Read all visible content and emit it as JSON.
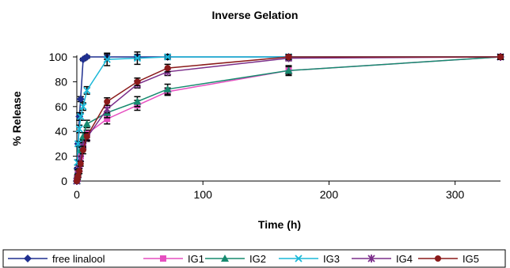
{
  "chart_data": {
    "type": "line",
    "title": "Inverse Gelation",
    "xlabel": "Time (h)",
    "ylabel": "% Release",
    "xlim": [
      0,
      336
    ],
    "ylim": [
      0,
      100
    ],
    "xticks": [
      0,
      100,
      200,
      300
    ],
    "yticks": [
      0,
      20,
      40,
      60,
      80,
      100
    ],
    "grid": false,
    "legend": "bottom",
    "series": [
      {
        "name": "free linalool",
        "color": "#1f2f8f",
        "marker": "diamond",
        "x": [
          0,
          0.5,
          1,
          2,
          3,
          5,
          8,
          24,
          48,
          72,
          168,
          336
        ],
        "y": [
          0,
          10,
          30,
          52,
          66,
          98,
          100,
          100,
          100,
          100,
          100,
          100
        ],
        "err": [
          0,
          1,
          2,
          3,
          2,
          1,
          1,
          2,
          2,
          1,
          1,
          1
        ]
      },
      {
        "name": "IG1",
        "color": "#e64fc0",
        "marker": "square",
        "x": [
          0,
          0.5,
          1,
          2,
          3,
          5,
          8,
          24,
          48,
          72,
          168,
          336
        ],
        "y": [
          0,
          3,
          6,
          12,
          20,
          30,
          38,
          50,
          61,
          72,
          89,
          100
        ],
        "err": [
          0,
          1,
          1,
          2,
          2,
          3,
          3,
          4,
          4,
          3,
          3,
          2
        ]
      },
      {
        "name": "IG2",
        "color": "#168a6f",
        "marker": "triangle",
        "x": [
          0,
          0.5,
          1,
          2,
          3,
          5,
          8,
          24,
          48,
          72,
          168,
          336
        ],
        "y": [
          0,
          4,
          8,
          15,
          25,
          36,
          46,
          55,
          64,
          74,
          89,
          100
        ],
        "err": [
          0,
          1,
          1,
          2,
          2,
          3,
          3,
          4,
          4,
          4,
          4,
          2
        ]
      },
      {
        "name": "IG3",
        "color": "#1ab8d8",
        "marker": "x",
        "x": [
          0,
          0.5,
          1,
          2,
          3,
          5,
          8,
          24,
          48,
          72,
          168,
          336
        ],
        "y": [
          0,
          15,
          30,
          42,
          52,
          60,
          73,
          98,
          99,
          100,
          100,
          100
        ],
        "err": [
          0,
          2,
          2,
          3,
          3,
          3,
          3,
          5,
          5,
          2,
          1,
          1
        ]
      },
      {
        "name": "IG4",
        "color": "#7b2e8a",
        "marker": "star",
        "x": [
          0,
          0.5,
          1,
          2,
          3,
          5,
          8,
          24,
          48,
          72,
          168,
          336
        ],
        "y": [
          0,
          2,
          5,
          10,
          18,
          28,
          35,
          58,
          78,
          88,
          99,
          100
        ],
        "err": [
          0,
          1,
          1,
          2,
          2,
          3,
          3,
          3,
          3,
          3,
          2,
          2
        ]
      },
      {
        "name": "IG5",
        "color": "#8a1a1a",
        "marker": "circle",
        "x": [
          0,
          0.5,
          1,
          2,
          3,
          5,
          8,
          24,
          48,
          72,
          168,
          336
        ],
        "y": [
          0,
          2,
          4,
          8,
          14,
          25,
          36,
          64,
          80,
          91,
          100,
          100
        ],
        "err": [
          0,
          1,
          1,
          2,
          2,
          3,
          3,
          3,
          3,
          3,
          2,
          2
        ]
      }
    ]
  }
}
